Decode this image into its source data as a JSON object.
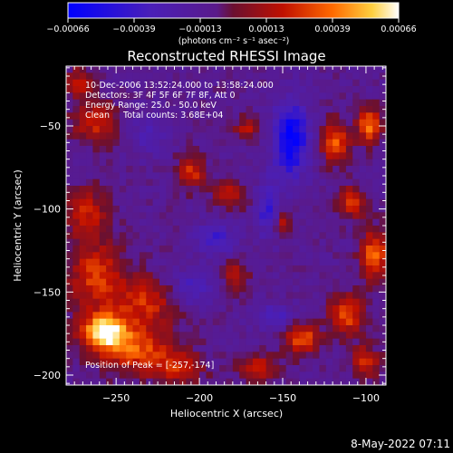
{
  "chart_data": {
    "type": "heatmap",
    "title": "Reconstructed RHESSI Image",
    "xlabel": "Heliocentric X (arcsec)",
    "ylabel": "Heliocentric Y (arcsec)",
    "xlim": [
      -280,
      -88
    ],
    "ylim": [
      -206,
      -14
    ],
    "x_ticks": [
      {
        "value": -250,
        "label": "−250"
      },
      {
        "value": -200,
        "label": "−200"
      },
      {
        "value": -150,
        "label": "−150"
      },
      {
        "value": -100,
        "label": "−100"
      }
    ],
    "y_ticks": [
      {
        "value": -50,
        "label": "−50"
      },
      {
        "value": -100,
        "label": "−100"
      },
      {
        "value": -150,
        "label": "−150"
      },
      {
        "value": -200,
        "label": "−200"
      }
    ],
    "colorbar": {
      "min": -0.00066,
      "max": 0.00066,
      "tick_labels": [
        "−0.00066",
        "−0.00039",
        "−0.00013",
        "0.00013",
        "0.00039",
        "0.00066"
      ],
      "units_text": "(photons cm⁻² s⁻¹ asec⁻²)"
    },
    "annotations": [
      "10-Dec-2006 13:52:24.000 to 13:58:24.000",
      "Detectors: 3F 4F 5F 6F 7F 8F, Att 0",
      "Energy Range: 25.0 - 50.0 keV",
      "Clean     Total counts: 3.68E+04"
    ],
    "peak_label": "Position of Peak = [-257,-174]",
    "peak": {
      "x": -257,
      "y": -174
    },
    "grid_size": 48,
    "regions": [
      {
        "x": -257,
        "y": -174,
        "rx": 14,
        "ry": 11,
        "amp": 1.25
      },
      {
        "x": -262,
        "y": -140,
        "rx": 16,
        "ry": 20,
        "amp": 0.65
      },
      {
        "x": -232,
        "y": -156,
        "rx": 18,
        "ry": 14,
        "amp": 0.6
      },
      {
        "x": -236,
        "y": -185,
        "rx": 22,
        "ry": 14,
        "amp": 0.7
      },
      {
        "x": -268,
        "y": -102,
        "rx": 12,
        "ry": 14,
        "amp": 0.55
      },
      {
        "x": -262,
        "y": -48,
        "rx": 14,
        "ry": 12,
        "amp": 0.55
      },
      {
        "x": -272,
        "y": -24,
        "rx": 8,
        "ry": 10,
        "amp": 0.45
      },
      {
        "x": -205,
        "y": -78,
        "rx": 8,
        "ry": 10,
        "amp": 0.6
      },
      {
        "x": -182,
        "y": -92,
        "rx": 9,
        "ry": 8,
        "amp": 0.5
      },
      {
        "x": -172,
        "y": -52,
        "rx": 7,
        "ry": 7,
        "amp": 0.45
      },
      {
        "x": -212,
        "y": -196,
        "rx": 14,
        "ry": 9,
        "amp": 0.5
      },
      {
        "x": -178,
        "y": -140,
        "rx": 8,
        "ry": 9,
        "amp": 0.45
      },
      {
        "x": -150,
        "y": -108,
        "rx": 6,
        "ry": 9,
        "amp": 0.5
      },
      {
        "x": -118,
        "y": -60,
        "rx": 8,
        "ry": 12,
        "amp": 0.8
      },
      {
        "x": -98,
        "y": -50,
        "rx": 7,
        "ry": 10,
        "amp": 0.85
      },
      {
        "x": -108,
        "y": -96,
        "rx": 9,
        "ry": 9,
        "amp": 0.6
      },
      {
        "x": -95,
        "y": -128,
        "rx": 8,
        "ry": 14,
        "amp": 0.85
      },
      {
        "x": -112,
        "y": -164,
        "rx": 10,
        "ry": 12,
        "amp": 0.7
      },
      {
        "x": -138,
        "y": -178,
        "rx": 10,
        "ry": 9,
        "amp": 0.75
      },
      {
        "x": -165,
        "y": -196,
        "rx": 12,
        "ry": 8,
        "amp": 0.55
      },
      {
        "x": -100,
        "y": -192,
        "rx": 9,
        "ry": 9,
        "amp": 0.6
      },
      {
        "x": -145,
        "y": -58,
        "rx": 10,
        "ry": 22,
        "amp": -0.95
      },
      {
        "x": -158,
        "y": -100,
        "rx": 7,
        "ry": 16,
        "amp": -0.6
      },
      {
        "x": -190,
        "y": -118,
        "rx": 12,
        "ry": 10,
        "amp": -0.45
      },
      {
        "x": -205,
        "y": -148,
        "rx": 14,
        "ry": 10,
        "amp": -0.4
      },
      {
        "x": -155,
        "y": -165,
        "rx": 10,
        "ry": 8,
        "amp": -0.4
      },
      {
        "x": -230,
        "y": -55,
        "rx": 12,
        "ry": 12,
        "amp": -0.3
      }
    ]
  }
}
